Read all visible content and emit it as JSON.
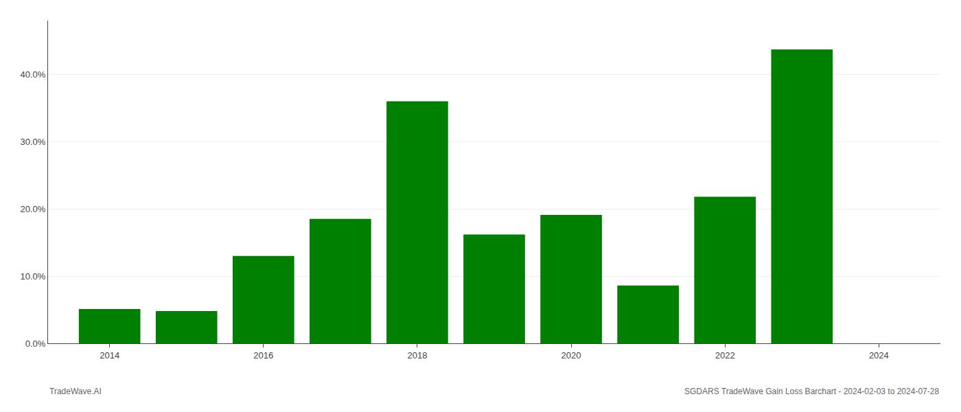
{
  "chart_data": {
    "type": "bar",
    "x": [
      2014,
      2015,
      2016,
      2017,
      2018,
      2019,
      2020,
      2021,
      2022,
      2023
    ],
    "values": [
      0.051,
      0.048,
      0.13,
      0.185,
      0.36,
      0.162,
      0.191,
      0.086,
      0.218,
      0.437
    ],
    "color": "#008000",
    "xlim": [
      2013.2,
      2024.8
    ],
    "xticks": [
      2014,
      2016,
      2018,
      2020,
      2022,
      2024
    ],
    "ylim": [
      0,
      0.48
    ],
    "yticks": [
      {
        "value": 0.0,
        "label": "0.0%"
      },
      {
        "value": 0.1,
        "label": "10.0%"
      },
      {
        "value": 0.2,
        "label": "20.0%"
      },
      {
        "value": 0.3,
        "label": "30.0%"
      },
      {
        "value": 0.4,
        "label": "40.0%"
      }
    ],
    "grid": true,
    "annotations": [
      "TradeWave.AI",
      "SGDARS TradeWave Gain Loss Barchart - 2024-02-03 to 2024-07-28"
    ]
  }
}
